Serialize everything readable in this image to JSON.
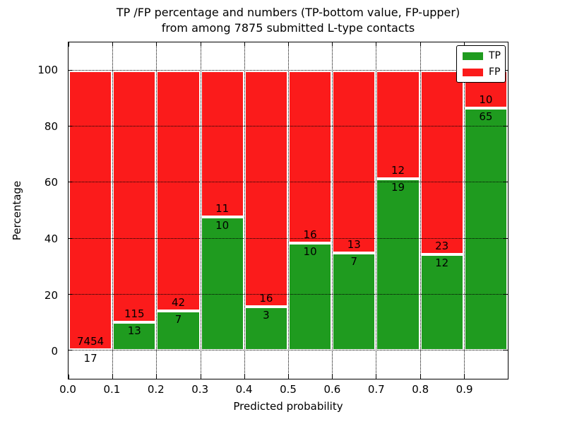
{
  "chart_data": {
    "type": "bar",
    "stacked": true,
    "orientation": "vertical",
    "title_line1": "TP /FP percentage and numbers (TP-bottom value, FP-upper)",
    "title_line2": "from among 7875 submitted L-type contacts",
    "xlabel": "Predicted probability",
    "ylabel": "Percentage",
    "categories": [
      "0.0-0.1",
      "0.1-0.2",
      "0.2-0.3",
      "0.3-0.4",
      "0.4-0.5",
      "0.5-0.6",
      "0.6-0.7",
      "0.7-0.8",
      "0.8-0.9",
      "0.9-1.0"
    ],
    "series": [
      {
        "name": "TP",
        "color": "#1f9b1f",
        "values": [
          17,
          13,
          7,
          10,
          3,
          10,
          7,
          19,
          12,
          65
        ]
      },
      {
        "name": "FP",
        "color": "#fb1b1b",
        "values": [
          7454,
          115,
          42,
          11,
          16,
          16,
          13,
          12,
          23,
          10
        ]
      }
    ],
    "value_display": "percentage of bin total; numeric counts annotated at TP/FP boundary (FP above, TP below)",
    "green_pct_of_bin": [
      0.23,
      10.16,
      14.29,
      47.62,
      15.79,
      38.46,
      35.0,
      61.29,
      34.29,
      86.67
    ],
    "total_contacts": "7875",
    "x_ticks": [
      "0.0",
      "0.1",
      "0.2",
      "0.3",
      "0.4",
      "0.5",
      "0.6",
      "0.7",
      "0.8",
      "0.9"
    ],
    "x_tick_positions": [
      0.0,
      0.1,
      0.2,
      0.3,
      0.4,
      0.5,
      0.6,
      0.7,
      0.8,
      0.9
    ],
    "y_ticks": [
      0,
      20,
      40,
      60,
      80,
      100
    ],
    "xlim": [
      0.0,
      1.0
    ],
    "ylim": [
      -10,
      110
    ],
    "grid": {
      "style": "dotted",
      "color": "#000000",
      "drawn_above_bars": true
    },
    "legend": {
      "position": "upper right",
      "entries": [
        {
          "label": "TP",
          "color": "#1f9b1f"
        },
        {
          "label": "FP",
          "color": "#fb1b1b"
        }
      ]
    },
    "axes_color": "#000000",
    "background_color": "#ffffff"
  }
}
